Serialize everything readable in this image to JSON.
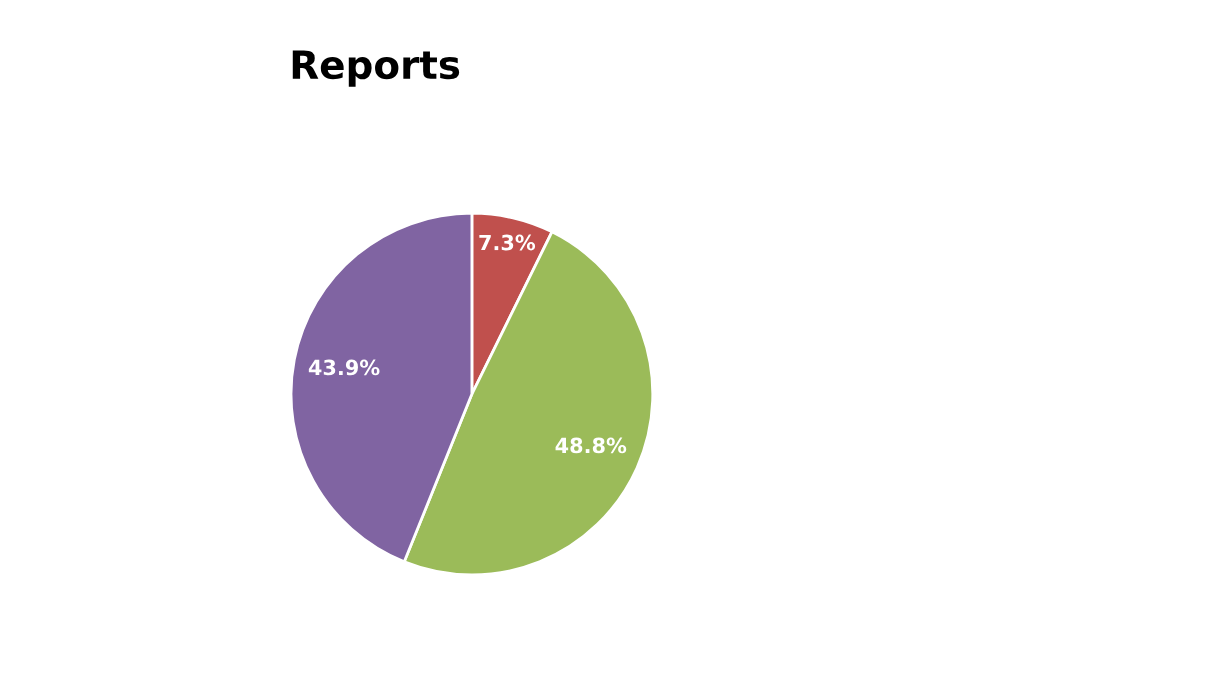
{
  "chart_data": {
    "type": "pie",
    "title": "Reports",
    "categories": [
      null,
      null,
      null
    ],
    "values": [
      7.3,
      48.8,
      43.9
    ],
    "colors": [
      "#c0504d",
      "#9bbb59",
      "#8064a2"
    ],
    "value_labels": [
      "7.3%",
      "48.8%",
      "43.9%"
    ],
    "legend": false
  }
}
